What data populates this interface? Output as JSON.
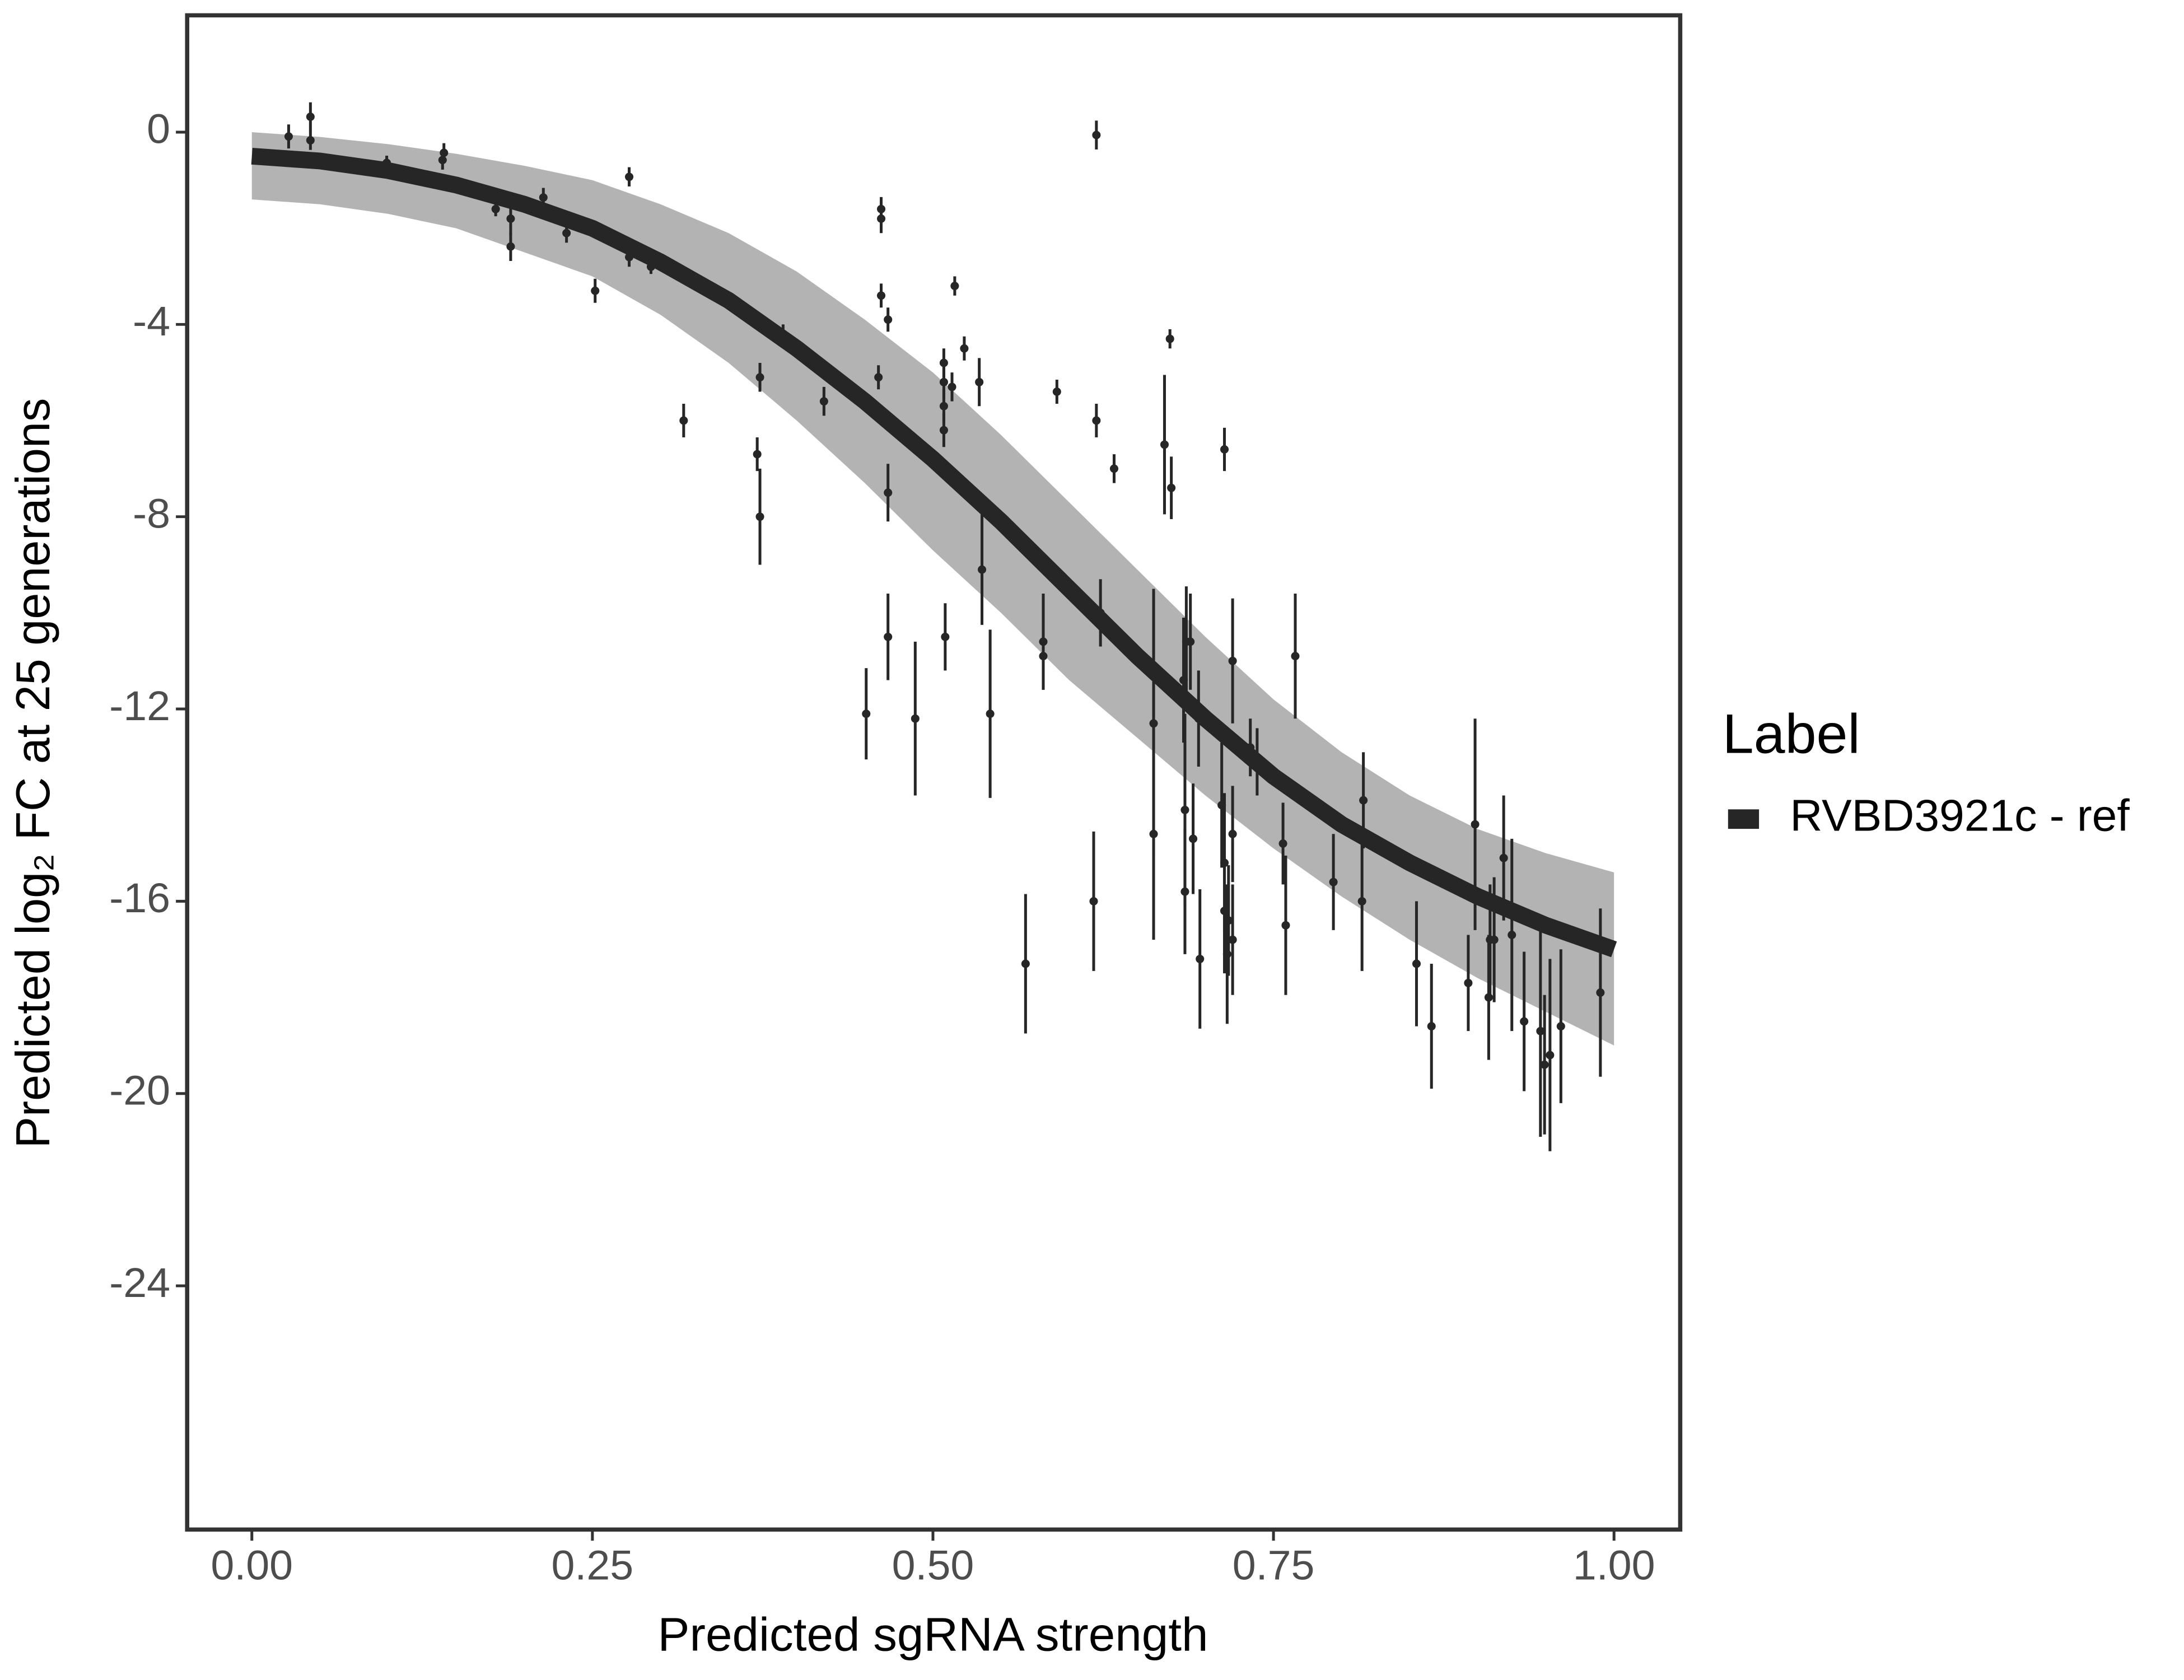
{
  "chart_data": {
    "type": "scatter",
    "x_label": "Predicted sgRNA strength",
    "y_label": "Predicted  log₂ FC at 25 generations",
    "xlim": [
      -0.0475,
      1.0486
    ],
    "ylim": [
      -29.07,
      2.43
    ],
    "xticks": [
      {
        "value": 0,
        "label": "0.00"
      },
      {
        "value": 0.25,
        "label": "0.25"
      },
      {
        "value": 0.5,
        "label": "0.50"
      },
      {
        "value": 0.75,
        "label": "0.75"
      },
      {
        "value": 1,
        "label": "1.00"
      }
    ],
    "yticks": [
      0,
      -4,
      -8,
      -12,
      -16,
      -20,
      -24
    ],
    "legend_title": "Label",
    "legend_position": "right",
    "points": {
      "color": "#262626",
      "x": [
        0.027,
        0.043,
        0.043,
        0.099,
        0.14,
        0.141,
        0.179,
        0.19,
        0.19,
        0.214,
        0.231,
        0.252,
        0.277,
        0.277,
        0.293,
        0.317,
        0.371,
        0.373,
        0.373,
        0.39,
        0.42,
        0.451,
        0.46,
        0.462,
        0.462,
        0.462,
        0.467,
        0.467,
        0.467,
        0.487,
        0.508,
        0.508,
        0.508,
        0.508,
        0.509,
        0.514,
        0.516,
        0.523,
        0.534,
        0.536,
        0.542,
        0.568,
        0.581,
        0.581,
        0.591,
        0.618,
        0.62,
        0.62,
        0.623,
        0.633,
        0.662,
        0.662,
        0.662,
        0.67,
        0.674,
        0.675,
        0.684,
        0.685,
        0.685,
        0.686,
        0.689,
        0.691,
        0.695,
        0.696,
        0.712,
        0.714,
        0.714,
        0.714,
        0.716,
        0.717,
        0.72,
        0.72,
        0.72,
        0.733,
        0.738,
        0.757,
        0.759,
        0.766,
        0.794,
        0.815,
        0.816,
        0.855,
        0.866,
        0.893,
        0.898,
        0.908,
        0.909,
        0.912,
        0.919,
        0.925,
        0.934,
        0.946,
        0.949,
        0.953,
        0.961,
        0.99
      ],
      "values": [
        -0.09,
        0.32,
        -0.17,
        -0.64,
        -0.58,
        -0.43,
        -1.6,
        -1.8,
        -2.38,
        -1.36,
        -2.1,
        -3.3,
        -0.93,
        -2.6,
        -2.8,
        -6.0,
        -6.7,
        -8.0,
        -5.1,
        -4.2,
        -5.6,
        -12.1,
        -5.1,
        -3.4,
        -1.8,
        -1.6,
        -3.9,
        -7.5,
        -10.5,
        -12.2,
        -4.8,
        -5.2,
        -5.7,
        -6.2,
        -10.5,
        -5.3,
        -3.2,
        -4.5,
        -5.2,
        -9.1,
        -12.1,
        -17.3,
        -10.6,
        -10.9,
        -5.4,
        -16.0,
        -6.0,
        -0.06,
        -10.0,
        -7.0,
        -14.6,
        -11.1,
        -12.3,
        -6.5,
        -4.3,
        -7.4,
        -11.4,
        -14.1,
        -15.8,
        -10.6,
        -10.6,
        -14.7,
        -12.2,
        -17.2,
        -14.0,
        -6.6,
        -15.2,
        -16.2,
        -17.1,
        -16.4,
        -11.0,
        -14.6,
        -16.8,
        -12.8,
        -13.1,
        -14.8,
        -16.5,
        -10.9,
        -15.6,
        -16.0,
        -13.9,
        -17.3,
        -18.6,
        -17.7,
        -14.4,
        -18.0,
        -16.8,
        -16.8,
        -15.1,
        -16.7,
        -18.5,
        -18.7,
        -19.4,
        -19.2,
        -18.6,
        -17.9
      ],
      "errors": [
        0.25,
        0.3,
        0.2,
        0.15,
        0.2,
        0.2,
        0.15,
        0.35,
        0.3,
        0.2,
        0.2,
        0.25,
        0.2,
        0.2,
        0.15,
        0.35,
        0.35,
        1.0,
        0.3,
        0.2,
        0.3,
        0.95,
        0.25,
        0.25,
        0.3,
        0.25,
        0.25,
        0.6,
        0.9,
        1.6,
        0.3,
        0.35,
        0.35,
        0.35,
        0.7,
        0.3,
        0.2,
        0.25,
        0.5,
        1.15,
        1.75,
        1.45,
        1.0,
        0.7,
        0.25,
        1.45,
        0.35,
        0.3,
        0.7,
        0.3,
        2.2,
        1.6,
        2.75,
        1.45,
        0.2,
        0.65,
        1.3,
        2.0,
        1.3,
        1.15,
        1.0,
        1.15,
        1.0,
        1.45,
        1.3,
        0.45,
        1.45,
        1.3,
        1.45,
        1.15,
        1.3,
        1.0,
        1.15,
        0.6,
        0.7,
        0.85,
        1.45,
        1.3,
        1.0,
        1.45,
        1.0,
        1.3,
        1.3,
        1.0,
        2.2,
        1.3,
        1.15,
        1.3,
        1.3,
        2.0,
        1.45,
        2.2,
        1.45,
        2.0,
        1.6,
        1.75
      ]
    },
    "series": [
      {
        "name": "RVBD3921c - ref",
        "color": "#262626",
        "x": [
          0,
          0.05,
          0.1,
          0.15,
          0.2,
          0.25,
          0.3,
          0.35,
          0.4,
          0.45,
          0.5,
          0.55,
          0.6,
          0.65,
          0.7,
          0.75,
          0.8,
          0.85,
          0.9,
          0.95,
          1.0
        ],
        "values": [
          -0.5,
          -0.6,
          -0.8,
          -1.1,
          -1.5,
          -2.0,
          -2.7,
          -3.5,
          -4.5,
          -5.6,
          -6.8,
          -8.1,
          -9.5,
          -10.9,
          -12.2,
          -13.4,
          -14.4,
          -15.2,
          -15.9,
          -16.5,
          -17.0
        ]
      }
    ],
    "ribbon": {
      "color": "#a6a6a6",
      "upper": [
        0,
        -0.1,
        -0.25,
        -0.45,
        -0.7,
        -1.0,
        -1.5,
        -2.1,
        -2.9,
        -3.9,
        -5.0,
        -6.3,
        -7.7,
        -9.1,
        -10.5,
        -11.8,
        -12.9,
        -13.8,
        -14.5,
        -15.0,
        -15.4
      ],
      "lower": [
        -1.4,
        -1.5,
        -1.7,
        -2.0,
        -2.5,
        -3.0,
        -3.8,
        -4.8,
        -6.0,
        -7.3,
        -8.7,
        -10.0,
        -11.4,
        -12.6,
        -13.8,
        -14.9,
        -15.9,
        -16.8,
        -17.6,
        -18.3,
        -19.0
      ]
    }
  }
}
